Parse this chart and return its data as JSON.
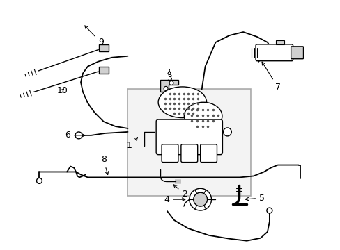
{
  "background_color": "#ffffff",
  "line_color": "#000000",
  "fig_width": 4.89,
  "fig_height": 3.6,
  "dpi": 100,
  "label_fontsize": 9,
  "component_gray": "#d0d0d0",
  "box_gray": "#e0e0e0",
  "dot_color": "#555555"
}
